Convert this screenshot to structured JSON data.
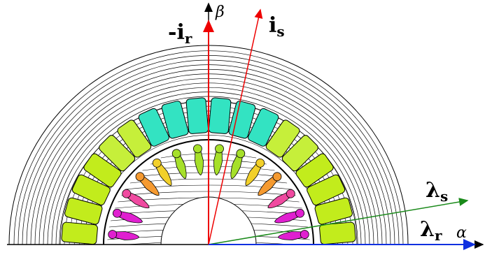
{
  "labels": {
    "beta": "β",
    "neg_i_r": {
      "main": "-i",
      "sub": "r"
    },
    "i_s": {
      "main": "i",
      "sub": "s"
    },
    "lambda_s": {
      "main": "λ",
      "sub": "s"
    },
    "lambda_r": {
      "main": "λ",
      "sub": "r"
    },
    "alpha": "α"
  }
}
